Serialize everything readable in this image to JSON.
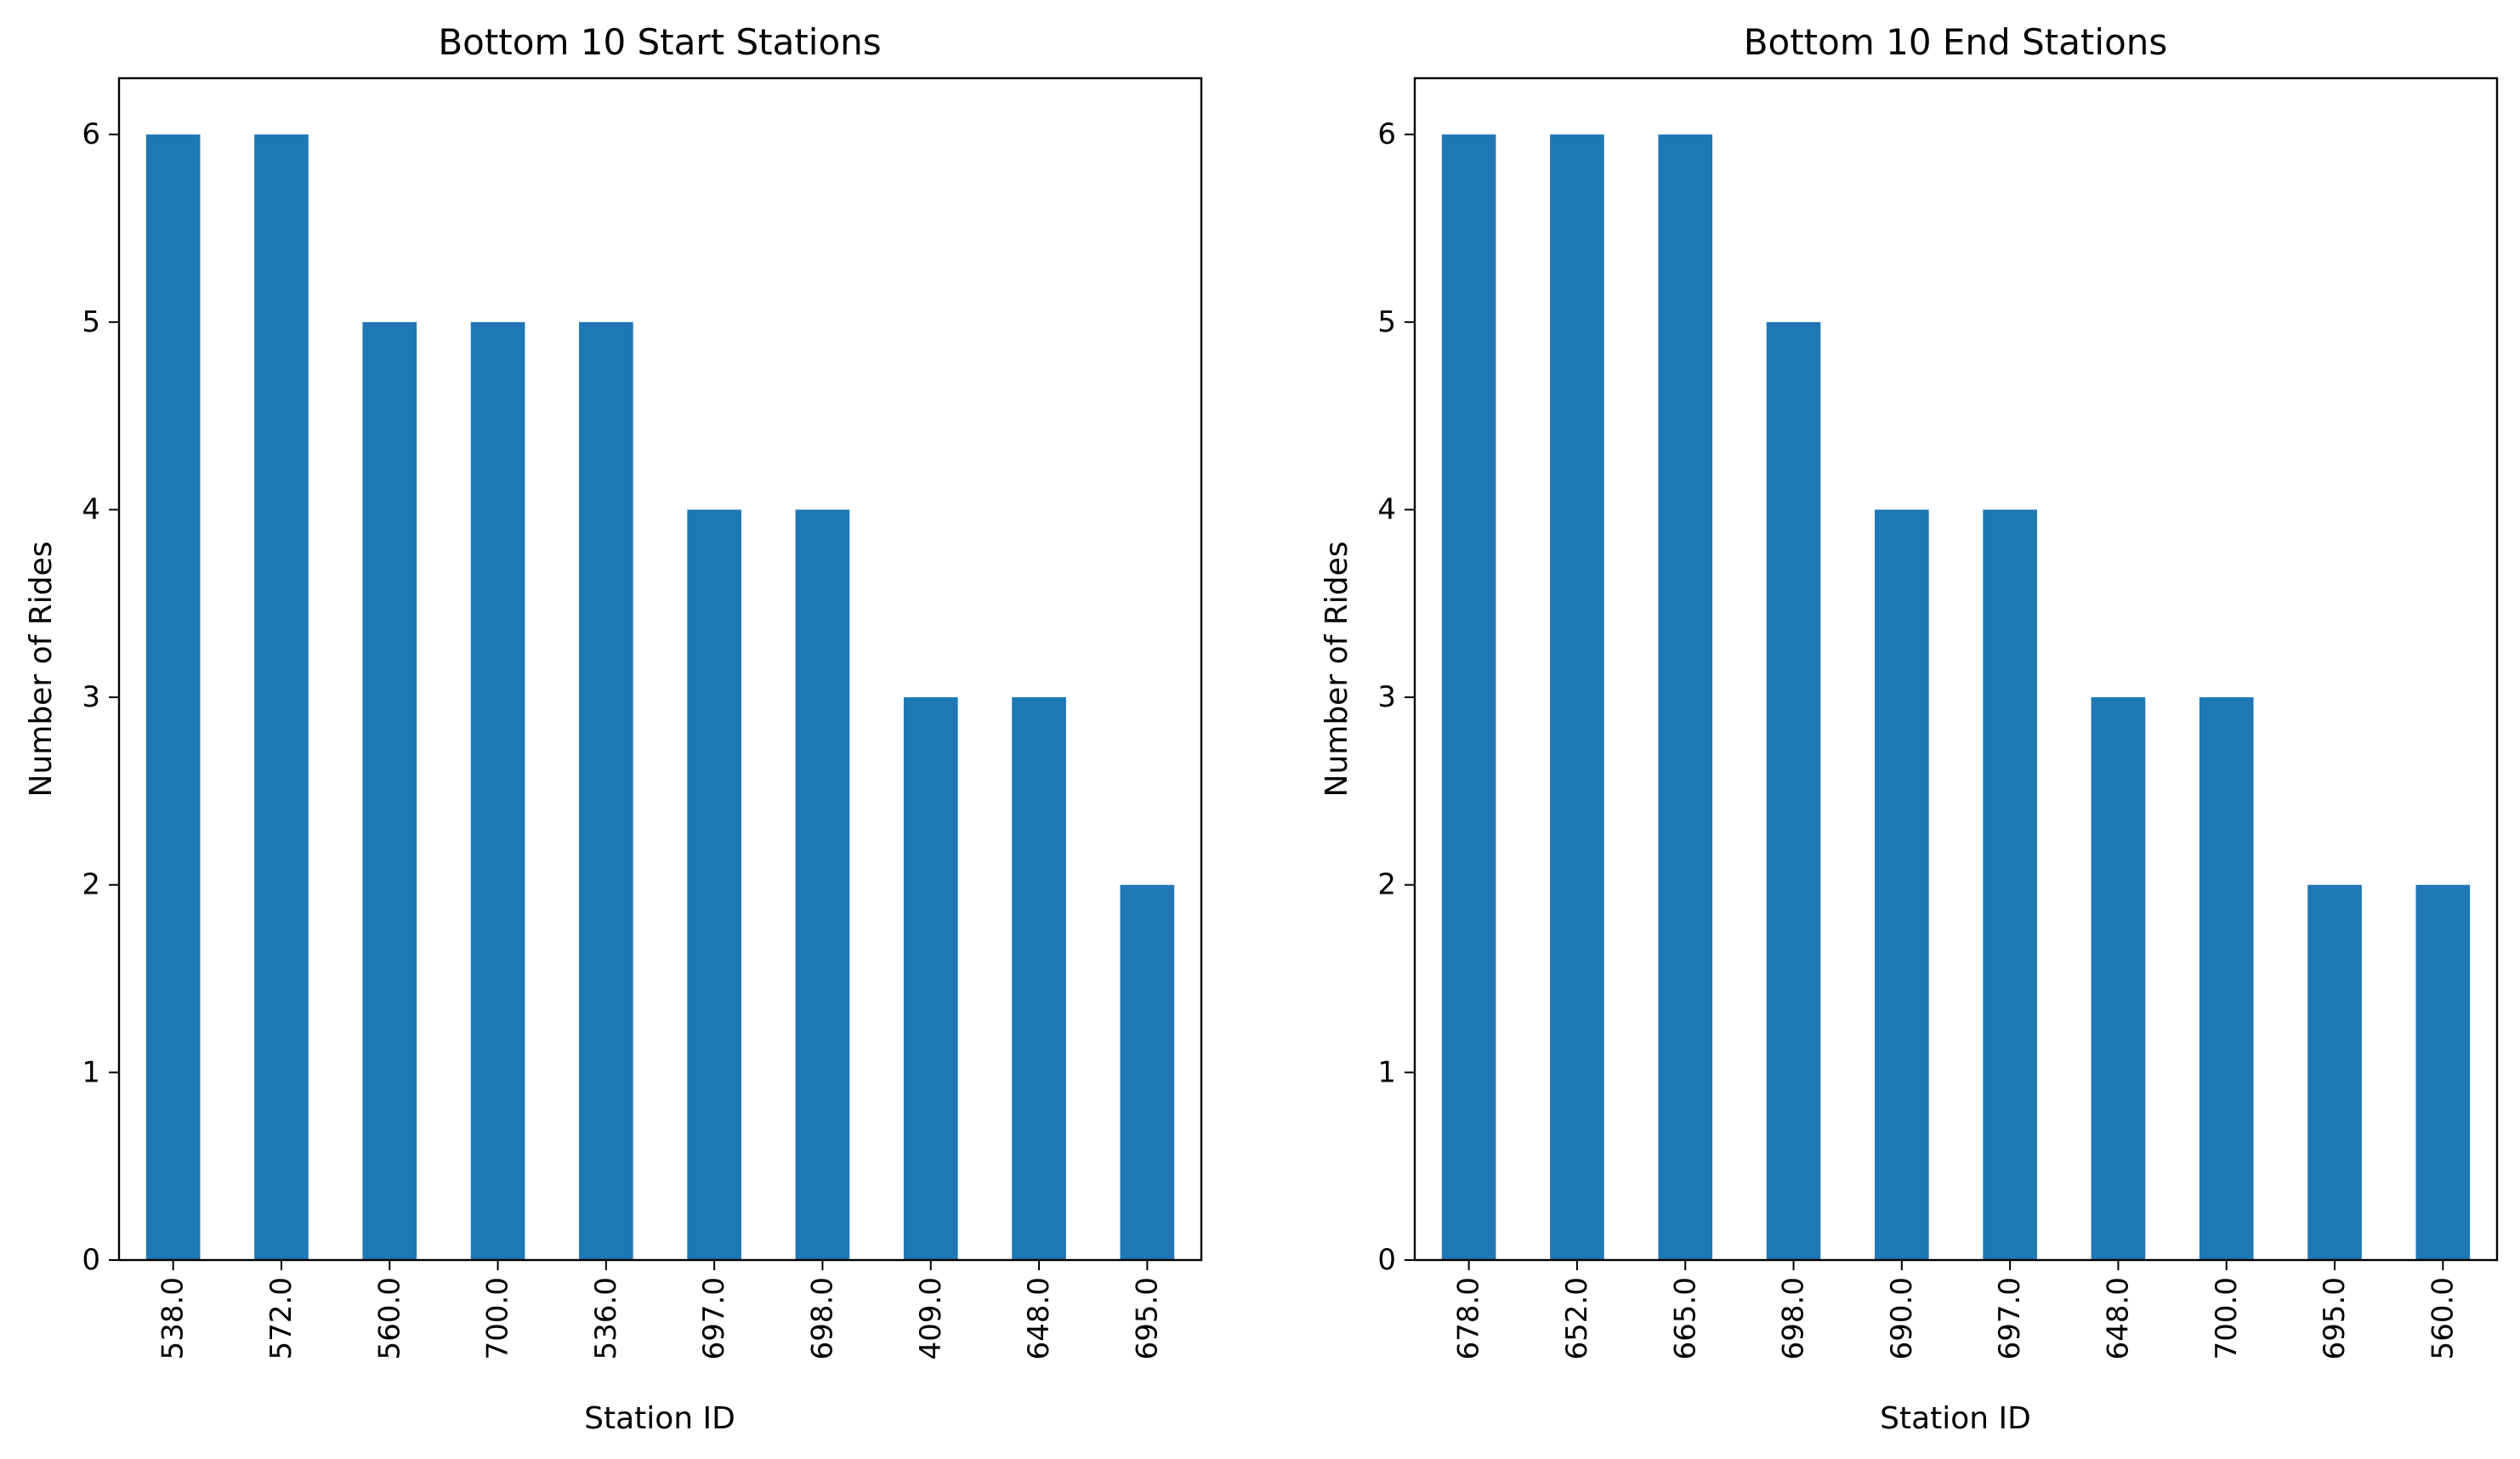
{
  "figure": {
    "background": "#ffffff",
    "bar_color": "#1f77b4"
  },
  "chart_data": [
    {
      "type": "bar",
      "title": "Bottom 10 Start Stations",
      "xlabel": "Station ID",
      "ylabel": "Number of Rides",
      "categories": [
        "538.0",
        "572.0",
        "560.0",
        "700.0",
        "536.0",
        "697.0",
        "698.0",
        "409.0",
        "648.0",
        "695.0"
      ],
      "values": [
        6,
        6,
        5,
        5,
        5,
        4,
        4,
        3,
        3,
        2
      ],
      "ylim": [
        0,
        6.3
      ],
      "yticks": [
        "0",
        "1",
        "2",
        "3",
        "4",
        "5",
        "6"
      ],
      "grid": false,
      "legend": "none"
    },
    {
      "type": "bar",
      "title": "Bottom 10 End Stations",
      "xlabel": "Station ID",
      "ylabel": "Number of Rides",
      "categories": [
        "678.0",
        "652.0",
        "665.0",
        "698.0",
        "690.0",
        "697.0",
        "648.0",
        "700.0",
        "695.0",
        "560.0"
      ],
      "values": [
        6,
        6,
        6,
        5,
        4,
        4,
        3,
        3,
        2,
        2
      ],
      "ylim": [
        0,
        6.3
      ],
      "yticks": [
        "0",
        "1",
        "2",
        "3",
        "4",
        "5",
        "6"
      ],
      "grid": false,
      "legend": "none"
    }
  ]
}
